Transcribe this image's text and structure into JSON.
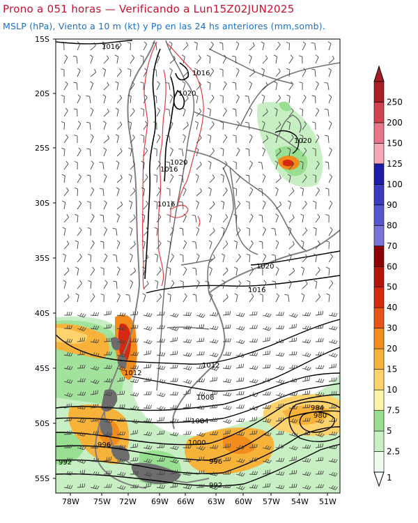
{
  "header": {
    "title": "Prono a 051 horas — Verificando a Lun15Z02JUN2025",
    "subtitle": "MSLP (hPa), Viento a 10 m (kt) y Pp en las 24 hs anteriores (mm,somb)."
  },
  "map": {
    "lat_labels": [
      "15S",
      "20S",
      "25S",
      "30S",
      "35S",
      "40S",
      "45S",
      "50S",
      "55S"
    ],
    "lon_labels": [
      "78W",
      "75W",
      "72W",
      "69W",
      "66W",
      "63W",
      "60W",
      "57W",
      "54W",
      "51W"
    ],
    "isobar_labels": [
      "1016",
      "1016",
      "1020",
      "1020",
      "1016",
      "1016",
      "1020",
      "1016",
      "1012",
      "1012",
      "1008",
      "1004",
      "1000",
      "996",
      "992",
      "996",
      "992",
      "984",
      "980",
      "1020"
    ]
  },
  "colorbar": {
    "levels": [
      "1",
      "2.5",
      "5",
      "7.5",
      "10",
      "15",
      "20",
      "30",
      "40",
      "50",
      "60",
      "70",
      "80",
      "90",
      "100",
      "125",
      "150",
      "200",
      "250"
    ],
    "colors": [
      "#f0fbef",
      "#c7efc3",
      "#98df92",
      "#fff3a8",
      "#ffd36b",
      "#f7b23a",
      "#f28c1c",
      "#e8551a",
      "#d42a0f",
      "#b5140b",
      "#8c0000",
      "#7b72d9",
      "#5656cf",
      "#3b3bbf",
      "#1e1ea8",
      "#f3a6b8",
      "#e7758a",
      "#d1424f",
      "#a81e24"
    ]
  },
  "colors": {
    "title": "#c8102e",
    "subtitle": "#1a6fc4",
    "isobar": "#000000",
    "coast": "#808080",
    "topo": "#e8383d"
  }
}
